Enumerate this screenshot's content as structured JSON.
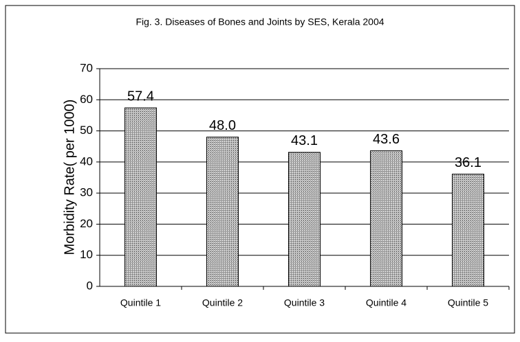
{
  "chart_data": {
    "type": "bar",
    "title": "Fig. 3. Diseases of Bones and Joints by SES, Kerala 2004",
    "y_label": "Morbidity Rate( per 1000)",
    "categories": [
      "Quintile 1",
      "Quintile 2",
      "Quintile 3",
      "Quintile 4",
      "Quintile 5"
    ],
    "values": [
      57.4,
      48.0,
      43.1,
      43.6,
      36.1
    ],
    "value_labels": [
      "57.4",
      "48.0",
      "43.1",
      "43.6",
      "36.1"
    ],
    "color": "#c8c8c8",
    "ylim": [
      0,
      70
    ],
    "yticks": [
      0,
      10,
      20,
      30,
      40,
      50,
      60,
      70
    ],
    "grid": true
  }
}
